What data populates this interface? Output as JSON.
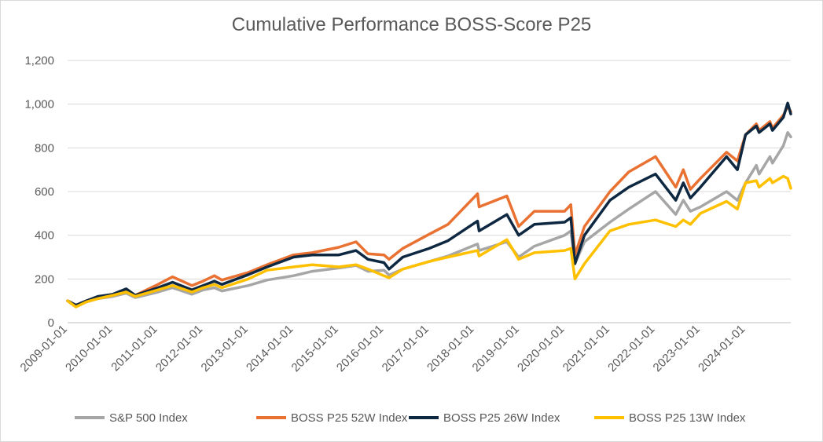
{
  "chart_data": {
    "type": "line",
    "title": "Cumulative Performance BOSS-Score P25",
    "xlabel": "",
    "ylabel": "",
    "ylim": [
      0,
      1200
    ],
    "yticks": [
      0,
      200,
      400,
      600,
      800,
      1000,
      1200
    ],
    "ytick_labels": [
      "0",
      "200",
      "400",
      "600",
      "800",
      "1,000",
      "1,200"
    ],
    "xlim": [
      "2009-01-01",
      "2024-12-31"
    ],
    "xtick_labels": [
      "2009-01-01",
      "2010-01-01",
      "2011-01-01",
      "2012-01-01",
      "2013-01-01",
      "2014-01-01",
      "2015-01-01",
      "2016-01-01",
      "2017-01-01",
      "2018-01-01",
      "2019-01-01",
      "2020-01-01",
      "2021-01-01",
      "2022-01-01",
      "2023-01-01",
      "2024-01-01"
    ],
    "grid": "horizontal",
    "legend": "bottom",
    "series": [
      {
        "name": "S&P 500 Index",
        "color": "#a6a6a6",
        "points": [
          [
            "2009-01-01",
            100
          ],
          [
            "2009-03-09",
            75
          ],
          [
            "2009-06-01",
            95
          ],
          [
            "2009-09-01",
            110
          ],
          [
            "2010-01-01",
            120
          ],
          [
            "2010-04-20",
            135
          ],
          [
            "2010-07-01",
            115
          ],
          [
            "2011-01-01",
            140
          ],
          [
            "2011-04-29",
            160
          ],
          [
            "2011-10-03",
            130
          ],
          [
            "2012-01-01",
            150
          ],
          [
            "2012-04-01",
            160
          ],
          [
            "2012-06-01",
            145
          ],
          [
            "2013-01-01",
            170
          ],
          [
            "2013-06-01",
            195
          ],
          [
            "2014-01-01",
            215
          ],
          [
            "2014-06-01",
            235
          ],
          [
            "2015-01-01",
            250
          ],
          [
            "2015-05-20",
            262
          ],
          [
            "2015-08-25",
            235
          ],
          [
            "2016-01-01",
            240
          ],
          [
            "2016-02-11",
            218
          ],
          [
            "2016-06-01",
            245
          ],
          [
            "2017-01-01",
            280
          ],
          [
            "2017-06-01",
            305
          ],
          [
            "2018-01-26",
            360
          ],
          [
            "2018-02-08",
            330
          ],
          [
            "2018-09-20",
            370
          ],
          [
            "2018-12-24",
            300
          ],
          [
            "2019-04-30",
            350
          ],
          [
            "2019-12-31",
            400
          ],
          [
            "2020-02-19",
            420
          ],
          [
            "2020-03-23",
            270
          ],
          [
            "2020-06-08",
            370
          ],
          [
            "2020-12-31",
            460
          ],
          [
            "2021-06-01",
            520
          ],
          [
            "2022-01-03",
            600
          ],
          [
            "2022-06-16",
            495
          ],
          [
            "2022-08-16",
            560
          ],
          [
            "2022-10-12",
            510
          ],
          [
            "2023-01-01",
            530
          ],
          [
            "2023-07-31",
            600
          ],
          [
            "2023-10-27",
            560
          ],
          [
            "2024-01-01",
            640
          ],
          [
            "2024-03-28",
            720
          ],
          [
            "2024-04-19",
            680
          ],
          [
            "2024-07-16",
            760
          ],
          [
            "2024-08-05",
            730
          ],
          [
            "2024-11-01",
            810
          ],
          [
            "2024-12-06",
            870
          ],
          [
            "2024-12-31",
            850
          ]
        ]
      },
      {
        "name": "BOSS P25 52W Index",
        "color": "#e97132",
        "points": [
          [
            "2009-01-01",
            100
          ],
          [
            "2009-03-09",
            80
          ],
          [
            "2009-06-01",
            100
          ],
          [
            "2009-09-01",
            115
          ],
          [
            "2010-01-01",
            125
          ],
          [
            "2010-04-20",
            150
          ],
          [
            "2010-07-01",
            125
          ],
          [
            "2011-01-01",
            175
          ],
          [
            "2011-04-29",
            210
          ],
          [
            "2011-10-03",
            170
          ],
          [
            "2012-01-01",
            190
          ],
          [
            "2012-04-01",
            215
          ],
          [
            "2012-06-01",
            195
          ],
          [
            "2013-01-01",
            230
          ],
          [
            "2013-06-01",
            265
          ],
          [
            "2014-01-01",
            310
          ],
          [
            "2014-06-01",
            320
          ],
          [
            "2015-01-01",
            345
          ],
          [
            "2015-05-20",
            370
          ],
          [
            "2015-08-25",
            315
          ],
          [
            "2016-01-01",
            310
          ],
          [
            "2016-02-11",
            290
          ],
          [
            "2016-06-01",
            340
          ],
          [
            "2017-01-01",
            405
          ],
          [
            "2017-06-01",
            450
          ],
          [
            "2018-01-26",
            590
          ],
          [
            "2018-02-08",
            530
          ],
          [
            "2018-09-20",
            580
          ],
          [
            "2018-12-24",
            440
          ],
          [
            "2019-04-30",
            510
          ],
          [
            "2019-12-31",
            510
          ],
          [
            "2020-02-19",
            540
          ],
          [
            "2020-03-23",
            310
          ],
          [
            "2020-06-08",
            440
          ],
          [
            "2020-12-31",
            600
          ],
          [
            "2021-06-01",
            690
          ],
          [
            "2022-01-03",
            760
          ],
          [
            "2022-06-16",
            620
          ],
          [
            "2022-08-16",
            700
          ],
          [
            "2022-10-12",
            610
          ],
          [
            "2023-01-01",
            660
          ],
          [
            "2023-07-31",
            780
          ],
          [
            "2023-10-27",
            740
          ],
          [
            "2024-01-01",
            860
          ],
          [
            "2024-03-28",
            910
          ],
          [
            "2024-04-19",
            880
          ],
          [
            "2024-07-16",
            920
          ],
          [
            "2024-08-05",
            890
          ],
          [
            "2024-11-01",
            950
          ],
          [
            "2024-12-06",
            990
          ],
          [
            "2024-12-31",
            965
          ]
        ]
      },
      {
        "name": "BOSS P25 26W Index",
        "color": "#0e2841",
        "points": [
          [
            "2009-01-01",
            100
          ],
          [
            "2009-03-09",
            80
          ],
          [
            "2009-06-01",
            100
          ],
          [
            "2009-09-01",
            120
          ],
          [
            "2010-01-01",
            130
          ],
          [
            "2010-04-20",
            155
          ],
          [
            "2010-07-01",
            125
          ],
          [
            "2011-01-01",
            160
          ],
          [
            "2011-04-29",
            185
          ],
          [
            "2011-10-03",
            150
          ],
          [
            "2012-01-01",
            170
          ],
          [
            "2012-04-01",
            190
          ],
          [
            "2012-06-01",
            175
          ],
          [
            "2013-01-01",
            220
          ],
          [
            "2013-06-01",
            255
          ],
          [
            "2014-01-01",
            300
          ],
          [
            "2014-06-01",
            310
          ],
          [
            "2015-01-01",
            310
          ],
          [
            "2015-05-20",
            330
          ],
          [
            "2015-08-25",
            290
          ],
          [
            "2016-01-01",
            275
          ],
          [
            "2016-02-11",
            245
          ],
          [
            "2016-06-01",
            300
          ],
          [
            "2017-01-01",
            340
          ],
          [
            "2017-06-01",
            375
          ],
          [
            "2018-01-26",
            465
          ],
          [
            "2018-02-08",
            420
          ],
          [
            "2018-09-20",
            495
          ],
          [
            "2018-12-24",
            400
          ],
          [
            "2019-04-30",
            450
          ],
          [
            "2019-12-31",
            460
          ],
          [
            "2020-02-19",
            480
          ],
          [
            "2020-03-23",
            270
          ],
          [
            "2020-06-08",
            400
          ],
          [
            "2020-12-31",
            560
          ],
          [
            "2021-06-01",
            620
          ],
          [
            "2022-01-03",
            680
          ],
          [
            "2022-06-16",
            560
          ],
          [
            "2022-08-16",
            640
          ],
          [
            "2022-10-12",
            570
          ],
          [
            "2023-01-01",
            620
          ],
          [
            "2023-07-31",
            760
          ],
          [
            "2023-10-27",
            700
          ],
          [
            "2024-01-01",
            860
          ],
          [
            "2024-03-28",
            900
          ],
          [
            "2024-04-19",
            870
          ],
          [
            "2024-07-16",
            910
          ],
          [
            "2024-08-05",
            880
          ],
          [
            "2024-11-01",
            940
          ],
          [
            "2024-12-06",
            1005
          ],
          [
            "2024-12-31",
            955
          ]
        ]
      },
      {
        "name": "BOSS P25 13W Index",
        "color": "#ffc000",
        "points": [
          [
            "2009-01-01",
            100
          ],
          [
            "2009-03-09",
            72
          ],
          [
            "2009-06-01",
            95
          ],
          [
            "2009-09-01",
            110
          ],
          [
            "2010-01-01",
            125
          ],
          [
            "2010-04-20",
            140
          ],
          [
            "2010-07-01",
            120
          ],
          [
            "2011-01-01",
            150
          ],
          [
            "2011-04-29",
            170
          ],
          [
            "2011-10-03",
            140
          ],
          [
            "2012-01-01",
            160
          ],
          [
            "2012-04-01",
            175
          ],
          [
            "2012-06-01",
            160
          ],
          [
            "2013-01-01",
            200
          ],
          [
            "2013-06-01",
            240
          ],
          [
            "2014-01-01",
            255
          ],
          [
            "2014-06-01",
            265
          ],
          [
            "2015-01-01",
            255
          ],
          [
            "2015-05-20",
            265
          ],
          [
            "2015-08-25",
            245
          ],
          [
            "2016-01-01",
            215
          ],
          [
            "2016-02-11",
            205
          ],
          [
            "2016-06-01",
            245
          ],
          [
            "2017-01-01",
            280
          ],
          [
            "2017-06-01",
            300
          ],
          [
            "2018-01-26",
            330
          ],
          [
            "2018-02-08",
            305
          ],
          [
            "2018-09-20",
            380
          ],
          [
            "2018-12-24",
            290
          ],
          [
            "2019-04-30",
            320
          ],
          [
            "2019-12-31",
            330
          ],
          [
            "2020-02-19",
            340
          ],
          [
            "2020-03-23",
            200
          ],
          [
            "2020-06-08",
            270
          ],
          [
            "2020-12-31",
            420
          ],
          [
            "2021-06-01",
            450
          ],
          [
            "2022-01-03",
            470
          ],
          [
            "2022-06-16",
            440
          ],
          [
            "2022-08-16",
            470
          ],
          [
            "2022-10-12",
            450
          ],
          [
            "2023-01-01",
            500
          ],
          [
            "2023-07-31",
            555
          ],
          [
            "2023-10-27",
            520
          ],
          [
            "2024-01-01",
            640
          ],
          [
            "2024-03-28",
            650
          ],
          [
            "2024-04-19",
            620
          ],
          [
            "2024-07-16",
            660
          ],
          [
            "2024-08-05",
            640
          ],
          [
            "2024-11-01",
            670
          ],
          [
            "2024-12-06",
            660
          ],
          [
            "2024-12-31",
            615
          ]
        ]
      }
    ]
  }
}
